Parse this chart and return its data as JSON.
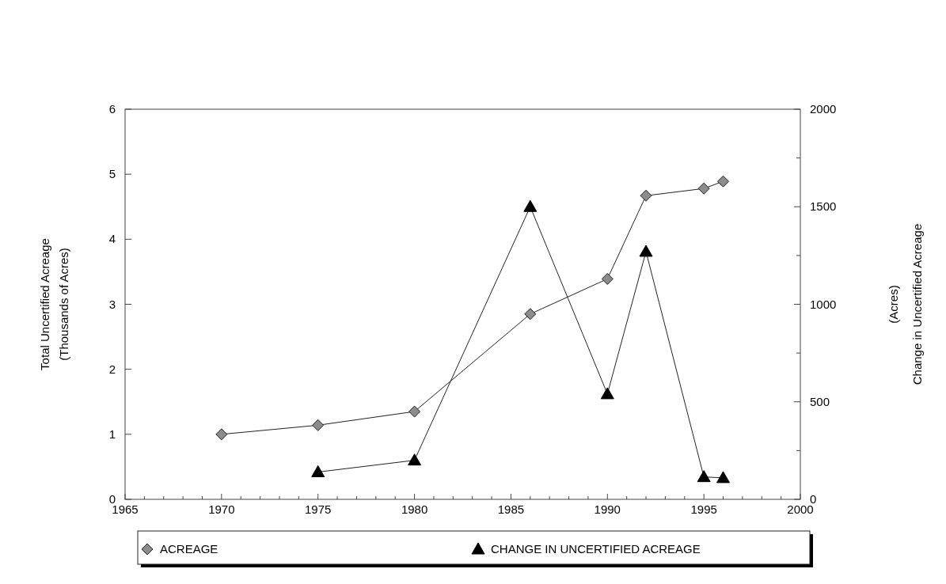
{
  "chart_data": {
    "type": "line",
    "ylabel": "Total Uncertified Acreage\n(Thousands of Acres)",
    "y2label": "Change in Uncertified Acreage\n(Acres)",
    "xlim": [
      1965,
      2000
    ],
    "xticks": [
      1965,
      {
        "value": 1966,
        "label": null
      },
      {
        "value": 1967,
        "label": null
      },
      {
        "value": 1968,
        "label": null
      },
      {
        "value": 1969,
        "label": null
      },
      1970,
      {
        "value": 1971,
        "label": null
      },
      {
        "value": 1972,
        "label": null
      },
      {
        "value": 1973,
        "label": null
      },
      {
        "value": 1974,
        "label": null
      },
      1975,
      {
        "value": 1976,
        "label": null
      },
      {
        "value": 1977,
        "label": null
      },
      {
        "value": 1978,
        "label": null
      },
      {
        "value": 1979,
        "label": null
      },
      1980,
      {
        "value": 1981,
        "label": null
      },
      {
        "value": 1982,
        "label": null
      },
      {
        "value": 1983,
        "label": null
      },
      {
        "value": 1984,
        "label": null
      },
      1985,
      {
        "value": 1986,
        "label": null
      },
      {
        "value": 1987,
        "label": null
      },
      {
        "value": 1988,
        "label": null
      },
      {
        "value": 1989,
        "label": null
      },
      1990,
      {
        "value": 1991,
        "label": null
      },
      {
        "value": 1992,
        "label": null
      },
      {
        "value": 1993,
        "label": null
      },
      {
        "value": 1994,
        "label": null
      },
      1995,
      {
        "value": 1996,
        "label": null
      },
      {
        "value": 1997,
        "label": null
      },
      {
        "value": 1998,
        "label": null
      },
      {
        "value": 1999,
        "label": null
      },
      2000
    ],
    "ylim": [
      0,
      6
    ],
    "yticks": [
      0,
      1,
      2,
      3,
      4,
      5,
      6
    ],
    "y2lim": [
      0,
      2000
    ],
    "y2ticks": [
      0,
      {
        "value": 250,
        "label": null
      },
      500,
      {
        "value": 750,
        "label": null
      },
      1000,
      {
        "value": 1250,
        "label": null
      },
      1500,
      {
        "value": 1750,
        "label": null
      },
      2000
    ],
    "legend": "bottom",
    "grid": false,
    "series": [
      {
        "name": "ACREAGE",
        "color": "#8c8c8c",
        "marker": "diamond",
        "x": [
          1970,
          1975,
          1980,
          1986,
          1990,
          1992,
          1995,
          1996
        ],
        "values": [
          1.0,
          1.14,
          1.35,
          2.85,
          3.39,
          4.67,
          4.78,
          4.89
        ]
      },
      {
        "name": "CHANGE IN UNCERTIFIED ACREAGE",
        "color": "#000000",
        "marker": "triangle",
        "axis": "y2",
        "x": [
          1975,
          1980,
          1986,
          1990,
          1992,
          1995,
          1996
        ],
        "values": [
          140,
          200,
          1500,
          540,
          1270,
          115,
          110
        ]
      }
    ]
  }
}
